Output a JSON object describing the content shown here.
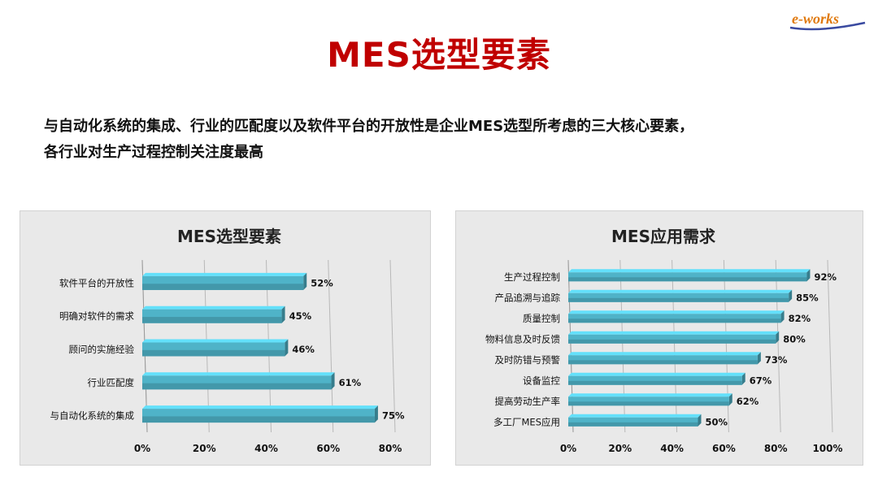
{
  "slide": {
    "title": "MES选型要素",
    "summary_line1": "与自动化系统的集成、行业的匹配度以及软件平台的开放性是企业MES选型所考虑的三大核心要素，",
    "summary_line2": "各行业对生产过程控制关注度最高",
    "logo_text": "e-works",
    "logo_colors": {
      "text": "#e07a10",
      "swoosh": "#3a4aa0"
    }
  },
  "chart_data": [
    {
      "type": "bar",
      "orientation": "horizontal",
      "title": "MES选型要素",
      "categories": [
        "软件平台的开放性",
        "明确对软件的需求",
        "顾问的实施经验",
        "行业匹配度",
        "与自动化系统的集成"
      ],
      "values": [
        52,
        45,
        46,
        61,
        75
      ],
      "value_labels": [
        "52%",
        "45%",
        "46%",
        "61%",
        "75%"
      ],
      "xlim": [
        0,
        80
      ],
      "xticks": [
        "0%",
        "20%",
        "40%",
        "60%",
        "80%"
      ],
      "grid": true,
      "bar_color": "#4fb3c8"
    },
    {
      "type": "bar",
      "orientation": "horizontal",
      "title": "MES应用需求",
      "categories": [
        "生产过程控制",
        "产品追溯与追踪",
        "质量控制",
        "物料信息及时反馈",
        "及时防错与预警",
        "设备监控",
        "提高劳动生产率",
        "多工厂MES应用"
      ],
      "values": [
        92,
        85,
        82,
        80,
        73,
        67,
        62,
        50
      ],
      "value_labels": [
        "92%",
        "85%",
        "82%",
        "80%",
        "73%",
        "67%",
        "62%",
        "50%"
      ],
      "xlim": [
        0,
        100
      ],
      "xticks": [
        "0%",
        "20%",
        "40%",
        "60%",
        "80%",
        "100%"
      ],
      "grid": true,
      "bar_color": "#4fb3c8"
    }
  ]
}
